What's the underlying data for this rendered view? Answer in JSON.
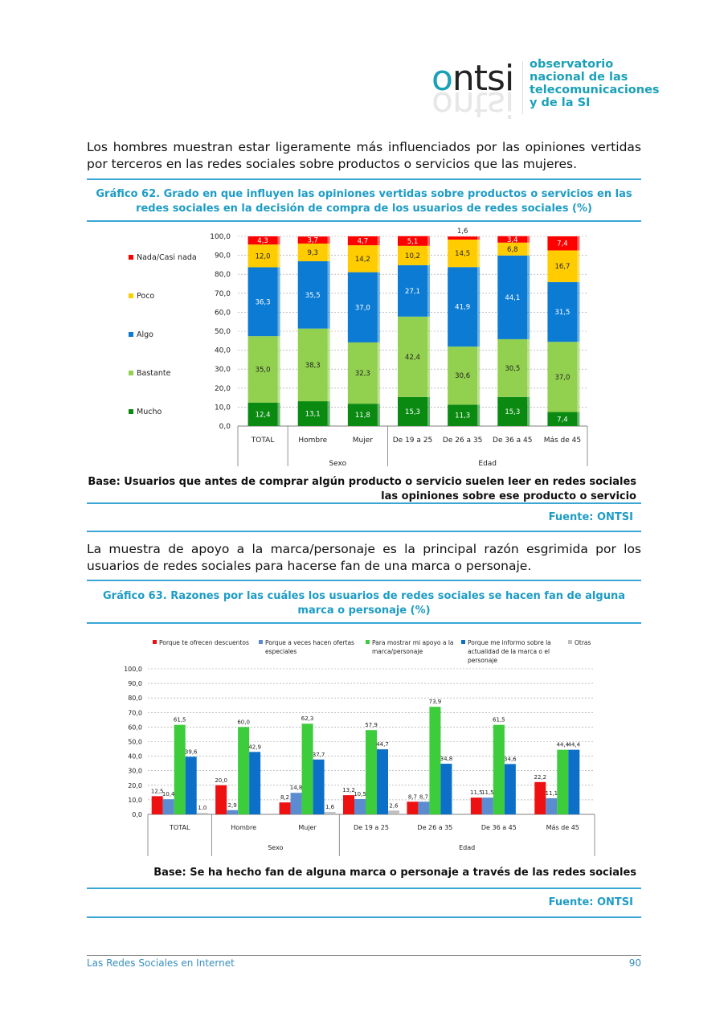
{
  "header": {
    "logo_word": "ontsi",
    "logo_lines": [
      "observatorio",
      "nacional de las",
      "telecomunicaciones",
      "y de la SI"
    ]
  },
  "para1": "Los hombres muestran estar ligeramente más influenciados por las opiniones vertidas por terceros en las redes sociales sobre productos o servicios que las mujeres.",
  "para2": "La muestra de apoyo a la marca/personaje es la principal razón esgrimida por los usuarios de redes sociales para hacerse fan de una marca o personaje.",
  "chart_data": [
    {
      "type": "bar",
      "stacked": true,
      "title": "Gráfico 62. Grado en que influyen las opiniones vertidas sobre productos o servicios en las redes sociales en la decisión de compra de los usuarios de redes sociales (%)",
      "categories": [
        "TOTAL",
        "Hombre",
        "Mujer",
        "De 19 a 25",
        "De 26 a 35",
        "De 36 a 45",
        "Más de 45"
      ],
      "groups": [
        {
          "label": "Sexo",
          "span": [
            1,
            2
          ]
        },
        {
          "label": "Edad",
          "span": [
            3,
            6
          ]
        }
      ],
      "ylim": [
        0,
        100
      ],
      "yticks": [
        "0,0",
        "10,0",
        "20,0",
        "30,0",
        "40,0",
        "50,0",
        "60,0",
        "70,0",
        "80,0",
        "90,0",
        "100,0"
      ],
      "legend_position": "left",
      "grid": true,
      "series": [
        {
          "name": "Mucho",
          "color": "#0b8a12",
          "label_color": "#ffffff",
          "values": [
            12.4,
            13.1,
            11.8,
            15.3,
            11.3,
            15.3,
            7.4
          ],
          "labels": [
            "12,4",
            "13,1",
            "11,8",
            "15,3",
            "11,3",
            "15,3",
            "7,4"
          ]
        },
        {
          "name": "Bastante",
          "color": "#92d050",
          "label_color": "#222222",
          "values": [
            35.0,
            38.3,
            32.3,
            42.4,
            30.6,
            30.5,
            37.0
          ],
          "labels": [
            "35,0",
            "38,3",
            "32,3",
            "42,4",
            "30,6",
            "30,5",
            "37,0"
          ]
        },
        {
          "name": "Algo",
          "color": "#0c7bd3",
          "label_color": "#ffffff",
          "values": [
            36.3,
            35.5,
            37.0,
            27.1,
            41.9,
            44.1,
            31.5
          ],
          "labels": [
            "36,3",
            "35,5",
            "37,0",
            "27,1",
            "41,9",
            "44,1",
            "31,5"
          ]
        },
        {
          "name": "Poco",
          "color": "#ffcc00",
          "label_color": "#222222",
          "values": [
            12.0,
            9.3,
            14.2,
            10.2,
            14.5,
            6.8,
            16.7
          ],
          "labels": [
            "12,0",
            "9,3",
            "14,2",
            "10,2",
            "14,5",
            "6,8",
            "16,7"
          ]
        },
        {
          "name": "Nada/Casi nada",
          "color": "#ff0000",
          "label_color": "#ffffff",
          "values": [
            4.3,
            3.7,
            4.7,
            5.1,
            1.6,
            3.4,
            7.4
          ],
          "labels": [
            "4,3",
            "3,7",
            "4,7",
            "5,1",
            "1,6",
            "3,4",
            "7,4"
          ]
        }
      ],
      "base": "Base: Usuarios que antes de comprar algún producto o servicio suelen leer en  redes sociales las opiniones sobre ese producto o servicio",
      "source": "Fuente: ONTSI"
    },
    {
      "type": "bar",
      "title": "Gráfico 63. Razones por las cuáles los usuarios de redes sociales se hacen fan de alguna marca o personaje (%)",
      "categories": [
        "TOTAL",
        "Hombre",
        "Mujer",
        "De 19 a 25",
        "De 26 a 35",
        "De 36 a 45",
        "Más de 45"
      ],
      "groups": [
        {
          "label": "Sexo",
          "span": [
            1,
            2
          ]
        },
        {
          "label": "Edad",
          "span": [
            3,
            6
          ]
        }
      ],
      "ylim": [
        0,
        100
      ],
      "yticks": [
        "0,0",
        "10,0",
        "20,0",
        "30,0",
        "40,0",
        "50,0",
        "60,0",
        "70,0",
        "80,0",
        "90,0",
        "100,0"
      ],
      "legend_position": "top",
      "grid": true,
      "series": [
        {
          "name": "Porque te ofrecen descuentos",
          "color": "#ee1111",
          "values": [
            12.5,
            20.0,
            8.2,
            13.2,
            8.7,
            11.5,
            22.2
          ],
          "labels": [
            "12,5",
            "20,0",
            "8,2",
            "13,2",
            "8,7",
            "11,5",
            "22,2"
          ]
        },
        {
          "name": "Porque a veces hacen ofertas especiales",
          "color": "#5b8bd0",
          "values": [
            10.4,
            2.9,
            14.8,
            10.5,
            8.7,
            11.5,
            11.1
          ],
          "labels": [
            "10,4",
            "2,9",
            "14,8",
            "10,5",
            "8,7",
            "11,5",
            "11,1"
          ]
        },
        {
          "name": "Para mostrar mi apoyo a la marca/personaje",
          "color": "#3ccc3c",
          "values": [
            61.5,
            60.0,
            62.3,
            57.9,
            73.9,
            61.5,
            44.4
          ],
          "labels": [
            "61,5",
            "60,0",
            "62,3",
            "57,9",
            "73,9",
            "61,5",
            "44,4"
          ]
        },
        {
          "name": "Porque me informo sobre la actualidad de la marca o el personaje",
          "color": "#0c70c8",
          "values": [
            39.6,
            42.9,
            37.7,
            44.7,
            34.8,
            34.6,
            44.4
          ],
          "labels": [
            "39,6",
            "42,9",
            "37,7",
            "44,7",
            "34,8",
            "34,6",
            "44,4"
          ]
        },
        {
          "name": "Otras",
          "color": "#bfbfbf",
          "values": [
            1.0,
            null,
            1.6,
            2.6,
            null,
            null,
            null
          ],
          "labels": [
            "1,0",
            "",
            "1,6",
            "2,6",
            "",
            "",
            ""
          ]
        }
      ],
      "legend_lines": [
        [
          "Porque te ofrecen descuentos"
        ],
        [
          "Porque a veces hacen ofertas",
          "especiales"
        ],
        [
          "Para mostrar mi apoyo a la",
          "marca/personaje"
        ],
        [
          "Porque me informo sobre la",
          "actualidad de la marca o el",
          "personaje"
        ],
        [
          "Otras"
        ]
      ],
      "base": "Base: Se ha hecho fan de alguna marca o personaje a través de las redes sociales",
      "source": "Fuente: ONTSI"
    }
  ],
  "footer": {
    "title": "Las Redes Sociales en Internet",
    "page": "90"
  }
}
